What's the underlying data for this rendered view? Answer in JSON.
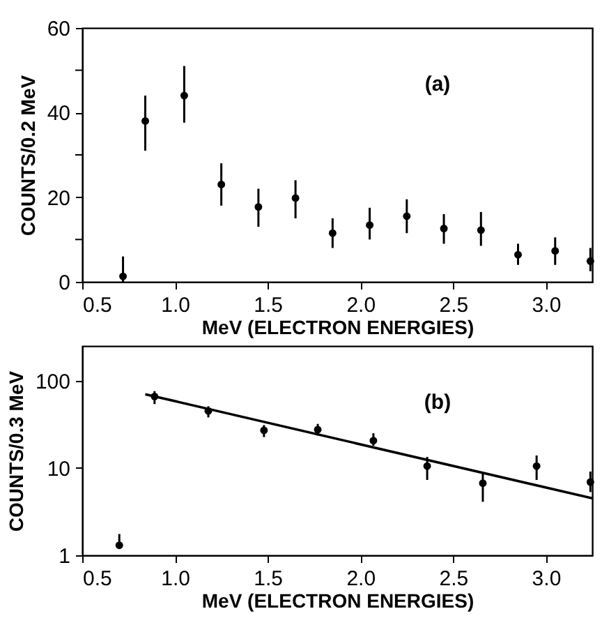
{
  "chart_data": [
    {
      "type": "scatter",
      "xlabel": "MeV (ELECTRON ENERGIES)",
      "ylabel": "COUNTS/0.2 MeV",
      "annotations": [
        "(a)"
      ],
      "marker": "circle",
      "xlim": [
        0.5,
        3.25
      ],
      "xticks": [
        0.5,
        {
          "value": 1,
          "label": "1.0"
        },
        1.5,
        {
          "value": 2,
          "label": "2.0"
        },
        2.5,
        {
          "value": 3,
          "label": "3.0"
        }
      ],
      "ylim": [
        0,
        60
      ],
      "yticks": [
        0,
        {
          "value": 10,
          "label": null
        },
        20,
        {
          "value": 30,
          "label": null
        },
        40,
        {
          "value": 50,
          "label": null
        },
        60
      ],
      "series": [
        {
          "color": "#000000",
          "x": [
            0.72,
            0.84,
            1.05,
            1.25,
            1.45,
            1.65,
            1.85,
            2.05,
            2.25,
            2.45,
            2.65,
            2.85,
            3.05,
            3.24
          ],
          "values": [
            1.3,
            38,
            44,
            23,
            17.7,
            19.8,
            11.5,
            13.4,
            15.5,
            12.6,
            12.2,
            6.4,
            7.3,
            4.9
          ],
          "errors": [
            [
              0,
              6
            ],
            [
              31,
              44
            ],
            [
              37.6,
              51
            ],
            [
              18,
              28
            ],
            [
              13,
              22
            ],
            [
              15,
              24
            ],
            [
              8,
              15
            ],
            [
              10,
              17.5
            ],
            [
              11.5,
              19.5
            ],
            [
              9,
              16
            ],
            [
              8.5,
              16.5
            ],
            [
              4,
              9
            ],
            [
              4,
              10.5
            ],
            [
              2.5,
              8
            ]
          ]
        }
      ]
    },
    {
      "type": "scatter",
      "xlabel": "MeV (ELECTRON ENERGIES)",
      "ylabel": "COUNTS/0.3 MeV",
      "annotations": [
        "(b)"
      ],
      "marker": "circle",
      "log": "y",
      "xlim": [
        0.5,
        3.25
      ],
      "xticks": [
        0.5,
        {
          "value": 1,
          "label": "1.0"
        },
        1.5,
        {
          "value": 2,
          "label": "2.0"
        },
        2.5,
        {
          "value": 3,
          "label": "3.0"
        }
      ],
      "ylim": [
        1,
        250
      ],
      "yticks": [
        1,
        10,
        100
      ],
      "series": [
        {
          "color": "#000000",
          "x": [
            0.7,
            0.89,
            1.18,
            1.48,
            1.77,
            2.07,
            2.36,
            2.66,
            2.95,
            3.24
          ],
          "values": [
            1.3,
            66,
            45,
            27,
            27.5,
            20.6,
            10.5,
            6.7,
            10.5,
            6.9
          ],
          "errors": [
            [
              1.3,
              1.75
            ],
            [
              54,
              76
            ],
            [
              38,
              51
            ],
            [
              22.6,
              31
            ],
            [
              23.5,
              32
            ],
            [
              18,
              25
            ],
            [
              7.3,
              13.4
            ],
            [
              4.1,
              8.9
            ],
            [
              7.3,
              13.9
            ],
            [
              5.3,
              9.1
            ]
          ]
        },
        {
          "type": "line",
          "marker": "none",
          "color": "#000000",
          "x": [
            0.84,
            3.25
          ],
          "values": [
            70,
            4.5
          ]
        }
      ]
    }
  ]
}
